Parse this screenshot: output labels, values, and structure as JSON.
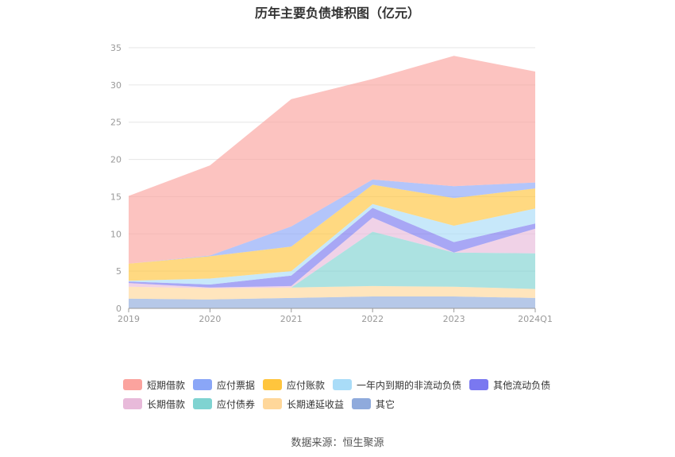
{
  "chart_data": {
    "type": "area",
    "stacked": true,
    "title": "历年主要负债堆积图（亿元）",
    "categories": [
      "2019",
      "2020",
      "2021",
      "2022",
      "2023",
      "2024Q1"
    ],
    "ylim": [
      0,
      35
    ],
    "yticks": [
      0,
      5,
      10,
      15,
      20,
      25,
      30,
      35
    ],
    "grid": true,
    "legend_position": "bottom",
    "series": [
      {
        "name": "其它",
        "color": "#8faadc",
        "values": [
          1.3,
          1.2,
          1.4,
          1.6,
          1.6,
          1.4
        ]
      },
      {
        "name": "长期递延收益",
        "color": "#ffd79a",
        "values": [
          1.6,
          1.5,
          1.4,
          1.4,
          1.3,
          1.2
        ]
      },
      {
        "name": "应付债券",
        "color": "#7fd3d1",
        "values": [
          0,
          0,
          0,
          7.3,
          4.6,
          4.8
        ]
      },
      {
        "name": "长期借款",
        "color": "#e8bada",
        "values": [
          0.5,
          0.1,
          0.2,
          1.9,
          0,
          3.3
        ]
      },
      {
        "name": "其他流动负债",
        "color": "#7a78f0",
        "values": [
          0.2,
          0.4,
          1.4,
          1.3,
          1.4,
          0.7
        ]
      },
      {
        "name": "一年内到期的非流动负债",
        "color": "#a9dcf8",
        "values": [
          0.1,
          0.8,
          0.6,
          0.5,
          2.2,
          2.0
        ]
      },
      {
        "name": "应付账款",
        "color": "#ffc53d",
        "values": [
          2.3,
          3.0,
          3.3,
          2.6,
          3.7,
          2.7
        ]
      },
      {
        "name": "应付票据",
        "color": "#8aa6f7",
        "values": [
          0,
          0.1,
          2.7,
          0.7,
          1.6,
          0.8
        ]
      },
      {
        "name": "短期借款",
        "color": "#fba39e",
        "values": [
          9.1,
          12.1,
          17.1,
          13.5,
          17.5,
          14.9
        ]
      }
    ],
    "legend_rows": [
      [
        "短期借款",
        "应付票据",
        "应付账款",
        "一年内到期的非流动负债",
        "其他流动负债"
      ],
      [
        "长期借款",
        "应付债券",
        "长期递延收益",
        "其它"
      ]
    ],
    "source": "数据来源：恒生聚源"
  }
}
